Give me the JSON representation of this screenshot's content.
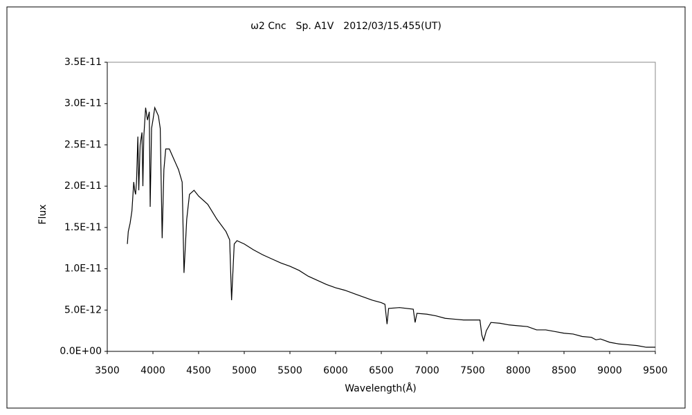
{
  "chart_data": {
    "type": "line",
    "title": "ω2 Cnc　Sp. A1V　2012/03/15.455(UT)",
    "xlabel": "Wavelength(Å)",
    "ylabel": "Flux",
    "x": [
      3720,
      3730,
      3750,
      3770,
      3790,
      3800,
      3810,
      3820,
      3835,
      3845,
      3860,
      3880,
      3890,
      3900,
      3920,
      3940,
      3960,
      3970,
      3985,
      4000,
      4020,
      4040,
      4060,
      4080,
      4101,
      4120,
      4140,
      4180,
      4220,
      4280,
      4320,
      4340,
      4370,
      4400,
      4450,
      4500,
      4600,
      4700,
      4800,
      4840,
      4861,
      4890,
      4920,
      5000,
      5100,
      5200,
      5300,
      5400,
      5500,
      5600,
      5700,
      5800,
      5900,
      6000,
      6100,
      6200,
      6300,
      6400,
      6500,
      6540,
      6563,
      6580,
      6700,
      6850,
      6870,
      6890,
      7000,
      7100,
      7200,
      7300,
      7400,
      7580,
      7600,
      7620,
      7650,
      7700,
      7800,
      7900,
      8000,
      8100,
      8200,
      8300,
      8400,
      8500,
      8600,
      8700,
      8800,
      8850,
      8900,
      9000,
      9100,
      9200,
      9300,
      9400,
      9500
    ],
    "series": [
      {
        "name": "Flux",
        "color": "#000000",
        "values": [
          1.3e-11,
          1.45e-11,
          1.55e-11,
          1.7e-11,
          2.05e-11,
          1.95e-11,
          1.9e-11,
          2.05e-11,
          2.6e-11,
          1.95e-11,
          2.5e-11,
          2.65e-11,
          2e-11,
          2.6e-11,
          2.95e-11,
          2.8e-11,
          2.9e-11,
          1.75e-11,
          2.7e-11,
          2.8e-11,
          2.95e-11,
          2.9e-11,
          2.85e-11,
          2.7e-11,
          1.37e-11,
          2.2e-11,
          2.45e-11,
          2.45e-11,
          2.35e-11,
          2.2e-11,
          2.05e-11,
          9.5e-12,
          1.6e-11,
          1.9e-11,
          1.95e-11,
          1.88e-11,
          1.78e-11,
          1.6e-11,
          1.45e-11,
          1.35e-11,
          6.2e-12,
          1.3e-11,
          1.34e-11,
          1.3e-11,
          1.23e-11,
          1.17e-11,
          1.12e-11,
          1.07e-11,
          1.03e-11,
          9.8e-12,
          9.1e-12,
          8.6e-12,
          8.1e-12,
          7.7e-12,
          7.4e-12,
          7e-12,
          6.6e-12,
          6.2e-12,
          5.9e-12,
          5.7e-12,
          3.3e-12,
          5.2e-12,
          5.3e-12,
          5.1e-12,
          3.5e-12,
          4.6e-12,
          4.5e-12,
          4.3e-12,
          4e-12,
          3.9e-12,
          3.8e-12,
          3.8e-12,
          2e-12,
          1.3e-12,
          2.5e-12,
          3.5e-12,
          3.4e-12,
          3.2e-12,
          3.1e-12,
          3e-12,
          2.6e-12,
          2.6e-12,
          2.4e-12,
          2.2e-12,
          2.1e-12,
          1.8e-12,
          1.7e-12,
          1.4e-12,
          1.5e-12,
          1.1e-12,
          9e-13,
          8e-13,
          7e-13,
          5e-13,
          5e-13
        ]
      }
    ],
    "xlim": [
      3500,
      9500
    ],
    "xticks": [
      3500,
      4000,
      4500,
      5000,
      5500,
      6000,
      6500,
      7000,
      7500,
      8000,
      8500,
      9000,
      9500
    ],
    "ylim": [
      0,
      3.5e-11
    ],
    "yticks": [
      {
        "value": 0,
        "label": "0.0E+00"
      },
      {
        "value": 5e-12,
        "label": "5.0E-12"
      },
      {
        "value": 1e-11,
        "label": "1.0E-11"
      },
      {
        "value": 1.5e-11,
        "label": "1.5E-11"
      },
      {
        "value": 2e-11,
        "label": "2.0E-11"
      },
      {
        "value": 2.5e-11,
        "label": "2.5E-11"
      },
      {
        "value": 3e-11,
        "label": "3.0E-11"
      },
      {
        "value": 3.5e-11,
        "label": "3.5E-11"
      }
    ],
    "grid": false
  }
}
